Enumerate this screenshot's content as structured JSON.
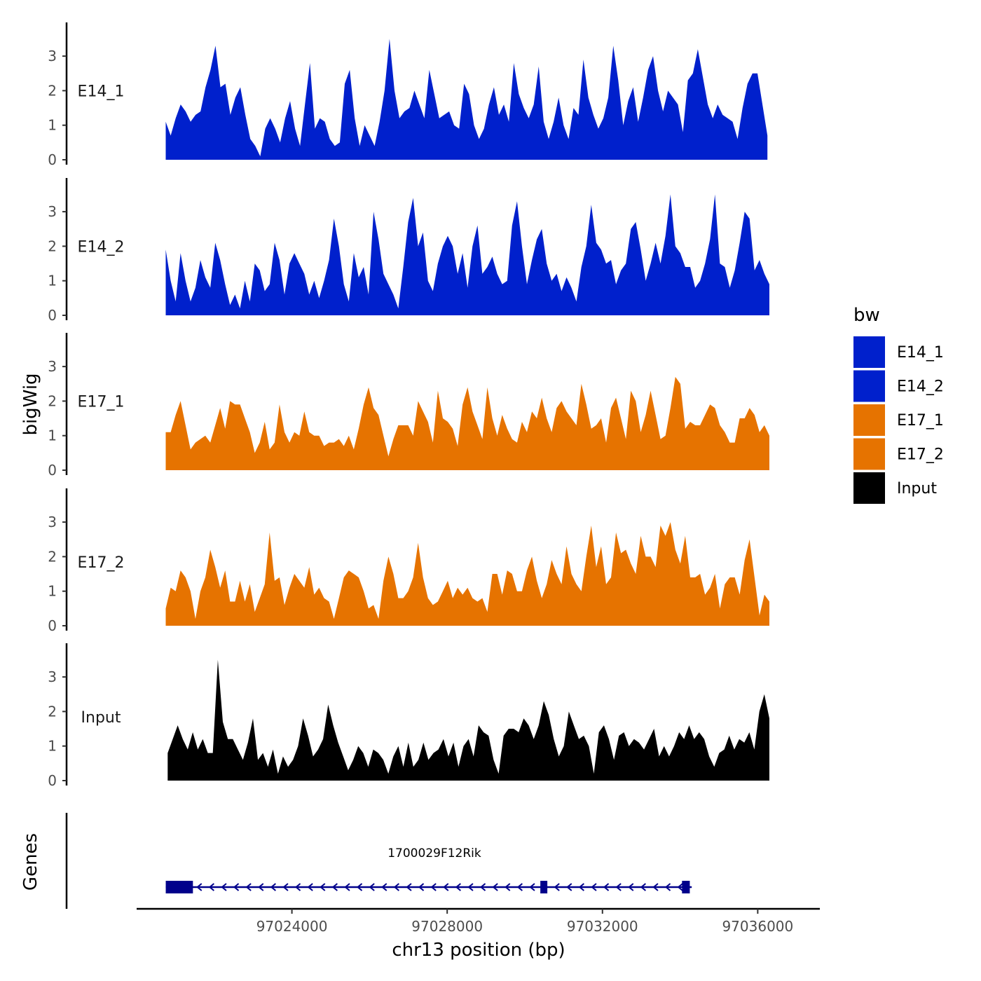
{
  "chart_data": {
    "type": "area",
    "y_axis_title": "bigWig",
    "genes_axis_title": "Genes",
    "x_axis_title": "chr13 position (bp)",
    "x_range": [
      97020000,
      97037600
    ],
    "x_ticks": [
      97024000,
      97028000,
      97032000,
      97036000
    ],
    "x_tick_labels": [
      "97024000",
      "97028000",
      "97032000",
      "97036000"
    ],
    "y_range": [
      0,
      3.9
    ],
    "y_ticks": [
      0,
      1,
      2,
      3
    ],
    "y_tick_labels": [
      "0",
      "1",
      "2",
      "3"
    ],
    "legend": {
      "title": "bw",
      "position": "right",
      "entries": [
        {
          "label": "E14_1",
          "color": "#0020CC"
        },
        {
          "label": "E14_2",
          "color": "#0020CC"
        },
        {
          "label": "E17_1",
          "color": "#E67300"
        },
        {
          "label": "E17_2",
          "color": "#E67300"
        },
        {
          "label": "Input",
          "color": "#000000"
        }
      ]
    },
    "tracks": [
      {
        "name": "E14_1",
        "color": "#0020CC",
        "x_start": 97020750,
        "x_end": 97036250,
        "values": [
          1.1,
          0.7,
          1.2,
          1.6,
          1.4,
          1.1,
          1.3,
          1.4,
          2.1,
          2.6,
          3.3,
          2.1,
          2.2,
          1.3,
          1.8,
          2.1,
          1.3,
          0.6,
          0.4,
          0.1,
          0.9,
          1.2,
          0.9,
          0.5,
          1.2,
          1.7,
          0.9,
          0.4,
          1.6,
          2.8,
          0.9,
          1.2,
          1.1,
          0.6,
          0.4,
          0.5,
          2.2,
          2.6,
          1.2,
          0.4,
          1.0,
          0.7,
          0.4,
          1.1,
          2.0,
          3.5,
          2.0,
          1.2,
          1.4,
          1.5,
          2.0,
          1.6,
          1.2,
          2.6,
          1.9,
          1.2,
          1.3,
          1.4,
          1.0,
          0.9,
          2.2,
          1.9,
          1.0,
          0.6,
          0.9,
          1.6,
          2.1,
          1.3,
          1.6,
          1.1,
          2.8,
          1.9,
          1.5,
          1.2,
          1.6,
          2.7,
          1.1,
          0.6,
          1.1,
          1.8,
          1.0,
          0.6,
          1.5,
          1.3,
          2.9,
          1.8,
          1.3,
          0.9,
          1.2,
          1.8,
          3.3,
          2.3,
          1.0,
          1.7,
          2.1,
          1.1,
          1.8,
          2.6,
          3.0,
          2.0,
          1.4,
          2.0,
          1.8,
          1.6,
          0.8,
          2.3,
          2.5,
          3.2,
          2.4,
          1.6,
          1.2,
          1.6,
          1.3,
          1.2,
          1.1,
          0.6,
          1.5,
          2.2,
          2.5,
          2.5,
          1.6,
          0.7
        ],
        "label_y": 2.0
      },
      {
        "name": "E14_2",
        "color": "#0020CC",
        "x_start": 97020750,
        "x_end": 97036300,
        "values": [
          1.9,
          1.0,
          0.4,
          1.8,
          1.0,
          0.4,
          0.8,
          1.6,
          1.1,
          0.8,
          2.1,
          1.6,
          0.9,
          0.3,
          0.6,
          0.2,
          1.0,
          0.4,
          1.5,
          1.3,
          0.7,
          0.9,
          2.1,
          1.6,
          0.6,
          1.5,
          1.8,
          1.5,
          1.2,
          0.6,
          1.0,
          0.5,
          1.0,
          1.6,
          2.8,
          2.0,
          0.9,
          0.4,
          1.8,
          1.1,
          1.4,
          0.6,
          3.0,
          2.2,
          1.2,
          0.9,
          0.6,
          0.2,
          1.4,
          2.7,
          3.4,
          2.0,
          2.4,
          1.0,
          0.7,
          1.5,
          2.0,
          2.3,
          2.0,
          1.2,
          1.8,
          0.8,
          2.0,
          2.6,
          1.2,
          1.4,
          1.7,
          1.2,
          0.9,
          1.0,
          2.6,
          3.3,
          2.0,
          0.9,
          1.6,
          2.2,
          2.5,
          1.5,
          1.0,
          1.2,
          0.7,
          1.1,
          0.8,
          0.4,
          1.4,
          2.0,
          3.2,
          2.1,
          1.9,
          1.5,
          1.6,
          0.9,
          1.3,
          1.5,
          2.5,
          2.7,
          1.9,
          1.0,
          1.5,
          2.1,
          1.5,
          2.3,
          3.5,
          2.0,
          1.8,
          1.4,
          1.4,
          0.8,
          1.0,
          1.5,
          2.2,
          3.5,
          1.5,
          1.4,
          0.8,
          1.3,
          2.1,
          3.0,
          2.8,
          1.3,
          1.6,
          1.2,
          0.9
        ],
        "label_y": 2.0
      },
      {
        "name": "E17_1",
        "color": "#E67300",
        "x_start": 97020750,
        "x_end": 97036300,
        "values": [
          1.1,
          1.1,
          1.6,
          2.0,
          1.3,
          0.6,
          0.8,
          0.9,
          1.0,
          0.8,
          1.3,
          1.8,
          1.2,
          2.0,
          1.9,
          1.9,
          1.5,
          1.1,
          0.5,
          0.8,
          1.4,
          0.6,
          0.8,
          1.9,
          1.1,
          0.8,
          1.1,
          1.0,
          1.7,
          1.1,
          1.0,
          1.0,
          0.7,
          0.8,
          0.8,
          0.9,
          0.7,
          1.0,
          0.6,
          1.2,
          1.9,
          2.4,
          1.8,
          1.6,
          1.0,
          0.4,
          0.9,
          1.3,
          1.3,
          1.3,
          1.0,
          2.0,
          1.7,
          1.4,
          0.8,
          2.3,
          1.5,
          1.4,
          1.2,
          0.7,
          1.9,
          2.4,
          1.7,
          1.3,
          0.9,
          2.4,
          1.5,
          1.0,
          1.6,
          1.2,
          0.9,
          0.8,
          1.4,
          1.1,
          1.7,
          1.5,
          2.1,
          1.5,
          1.1,
          1.8,
          2.0,
          1.7,
          1.5,
          1.3,
          2.5,
          1.9,
          1.2,
          1.3,
          1.5,
          0.8,
          1.8,
          2.1,
          1.5,
          0.9,
          2.3,
          2.0,
          1.1,
          1.6,
          2.3,
          1.6,
          0.9,
          1.0,
          1.8,
          2.7,
          2.5,
          1.2,
          1.4,
          1.3,
          1.3,
          1.6,
          1.9,
          1.8,
          1.3,
          1.1,
          0.8,
          0.8,
          1.5,
          1.5,
          1.8,
          1.6,
          1.1,
          1.3,
          1.0
        ],
        "label_y": 2.0
      },
      {
        "name": "E17_2",
        "color": "#E67300",
        "x_start": 97020750,
        "x_end": 97036300,
        "values": [
          0.5,
          1.1,
          1.0,
          1.6,
          1.4,
          1.0,
          0.2,
          1.0,
          1.4,
          2.2,
          1.7,
          1.1,
          1.6,
          0.7,
          0.7,
          1.3,
          0.7,
          1.2,
          0.4,
          0.8,
          1.2,
          2.7,
          1.3,
          1.4,
          0.6,
          1.1,
          1.5,
          1.3,
          1.1,
          1.7,
          0.9,
          1.1,
          0.8,
          0.7,
          0.2,
          0.8,
          1.4,
          1.6,
          1.5,
          1.4,
          1.0,
          0.5,
          0.6,
          0.2,
          1.3,
          2.0,
          1.5,
          0.8,
          0.8,
          1.0,
          1.4,
          2.4,
          1.4,
          0.8,
          0.6,
          0.7,
          1.0,
          1.3,
          0.8,
          1.1,
          0.9,
          1.1,
          0.8,
          0.7,
          0.8,
          0.4,
          1.5,
          1.5,
          0.9,
          1.6,
          1.5,
          1.0,
          1.0,
          1.6,
          2.0,
          1.3,
          0.8,
          1.2,
          1.9,
          1.5,
          1.2,
          2.3,
          1.5,
          1.2,
          1.0,
          2.0,
          2.9,
          1.7,
          2.3,
          1.2,
          1.4,
          2.7,
          2.1,
          2.2,
          1.8,
          1.5,
          2.6,
          2.0,
          2.0,
          1.7,
          2.9,
          2.6,
          3.0,
          2.2,
          1.8,
          2.6,
          1.4,
          1.4,
          1.5,
          0.9,
          1.1,
          1.5,
          0.5,
          1.2,
          1.4,
          1.4,
          0.9,
          1.9,
          2.5,
          1.4,
          0.3,
          0.9,
          0.7
        ],
        "label_y": 1.85
      },
      {
        "name": "Input",
        "color": "#000000",
        "x_start": 97020800,
        "x_end": 97036300,
        "values": [
          0.8,
          1.2,
          1.6,
          1.2,
          0.9,
          1.4,
          0.9,
          1.2,
          0.8,
          0.8,
          3.5,
          1.7,
          1.2,
          1.2,
          0.9,
          0.6,
          1.1,
          1.8,
          0.6,
          0.8,
          0.4,
          0.9,
          0.2,
          0.7,
          0.4,
          0.6,
          1.0,
          1.8,
          1.3,
          0.7,
          0.9,
          1.2,
          2.2,
          1.6,
          1.1,
          0.7,
          0.3,
          0.6,
          1.0,
          0.8,
          0.4,
          0.9,
          0.8,
          0.6,
          0.2,
          0.7,
          1.0,
          0.4,
          1.1,
          0.4,
          0.6,
          1.1,
          0.6,
          0.8,
          0.9,
          1.2,
          0.7,
          1.1,
          0.4,
          1.0,
          1.2,
          0.7,
          1.6,
          1.4,
          1.3,
          0.6,
          0.2,
          1.3,
          1.5,
          1.5,
          1.4,
          1.8,
          1.6,
          1.2,
          1.6,
          2.3,
          1.9,
          1.2,
          0.7,
          1.0,
          2.0,
          1.6,
          1.2,
          1.3,
          1.0,
          0.2,
          1.4,
          1.6,
          1.2,
          0.6,
          1.3,
          1.4,
          1.0,
          1.2,
          1.1,
          0.9,
          1.2,
          1.5,
          0.7,
          1.0,
          0.7,
          1.0,
          1.4,
          1.2,
          1.6,
          1.2,
          1.4,
          1.2,
          0.7,
          0.4,
          0.8,
          0.9,
          1.3,
          0.9,
          1.2,
          1.1,
          1.4,
          0.9,
          2.0,
          2.5,
          1.8
        ],
        "label_y": 1.85
      }
    ],
    "gene": {
      "name": "1700029F12Rik",
      "strand": "-",
      "color": "#00008B",
      "start": 97020750,
      "end": 97034300,
      "exons": [
        [
          97020750,
          97021450
        ],
        [
          97030400,
          97030580
        ],
        [
          97034050,
          97034250
        ]
      ]
    }
  }
}
